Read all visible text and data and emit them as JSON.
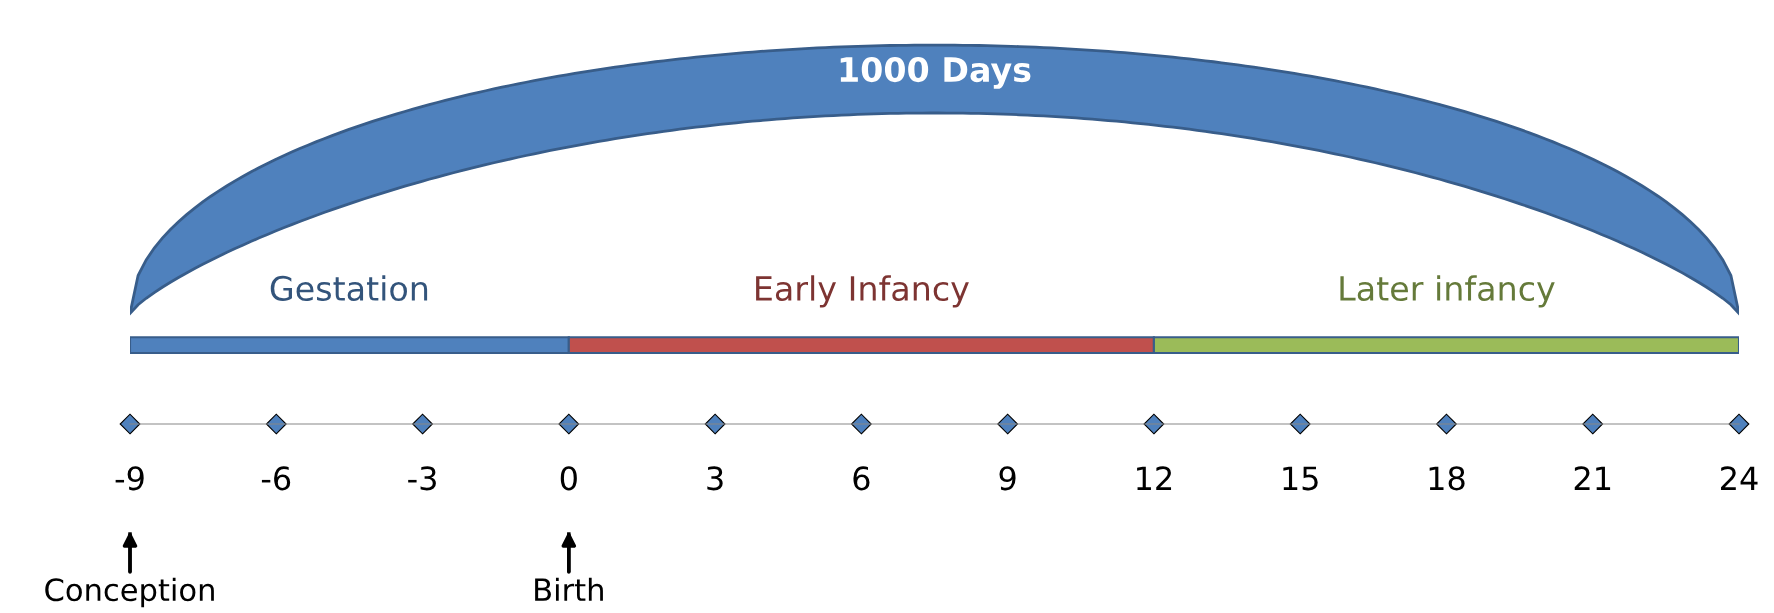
{
  "chart_data": {
    "type": "bar",
    "orientation": "horizontal",
    "categories": [
      null
    ],
    "series": [
      {
        "name": "Gestation",
        "color": "#4f81bd",
        "values": [
          9
        ],
        "base": [
          -9
        ]
      },
      {
        "name": "Early Infancy",
        "color": "#c0504d",
        "values": [
          12
        ],
        "base": [
          0
        ]
      },
      {
        "name": "Later infancy",
        "color": "#9bbb59",
        "values": [
          12
        ],
        "base": [
          12
        ]
      }
    ],
    "xlim": [
      -9,
      24
    ],
    "xticks": [
      -9,
      -6,
      -3,
      0,
      3,
      6,
      9,
      12,
      15,
      18,
      21,
      24
    ],
    "ref_lines": [
      {
        "axis": "x",
        "value": -9,
        "label": "Conception"
      },
      {
        "axis": "x",
        "value": 0,
        "label": "Birth"
      }
    ],
    "annotations": [
      "1000 Days"
    ],
    "tick_labels": "x",
    "grid": false,
    "legend": false
  }
}
